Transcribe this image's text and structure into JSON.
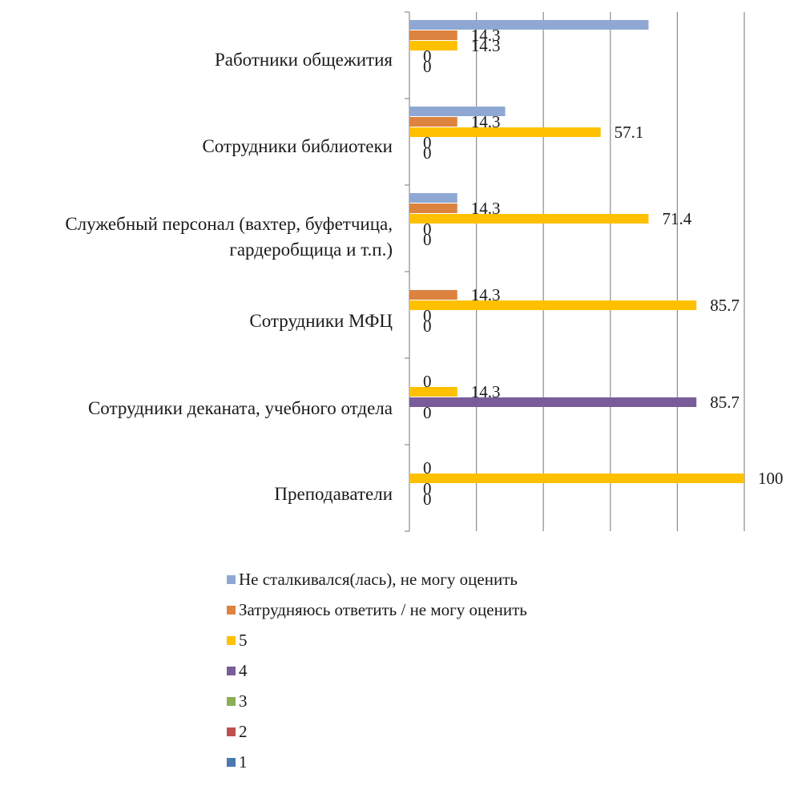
{
  "chart_data": {
    "type": "bar",
    "orientation": "horizontal",
    "categories": [
      "Работники общежития",
      "Сотрудники библиотеки",
      "Служебный персонал (вахтер, буфетчица, гардеробщица и т.п.)",
      "Сотрудники МФЦ",
      "Сотрудники деканата, учебного отдела",
      "Преподаватели"
    ],
    "series": [
      {
        "name": "Не сталкивался(лась), не могу оценить",
        "color": "#8FA8D3",
        "values": [
          71.4,
          28.6,
          14.3,
          null,
          null,
          null
        ]
      },
      {
        "name": "Затрудняюсь ответить / не могу оценить",
        "color": "#DD8340",
        "values": [
          14.3,
          14.3,
          14.3,
          14.3,
          null,
          null
        ]
      },
      {
        "name": "5",
        "color": "#FFC000",
        "values": [
          14.3,
          57.1,
          71.4,
          85.7,
          14.3,
          100
        ]
      },
      {
        "name": "4",
        "color": "#7A5C9A",
        "values": [
          0,
          0,
          0,
          0,
          85.7,
          0
        ]
      },
      {
        "name": "3",
        "color": "#8BAE55",
        "values": [
          0,
          0,
          0,
          0,
          0,
          0
        ]
      },
      {
        "name": "2",
        "color": "#C0504D",
        "values": [
          null,
          null,
          null,
          null,
          null,
          null
        ]
      },
      {
        "name": "1",
        "color": "#4A78B0",
        "values": [
          null,
          null,
          null,
          null,
          null,
          null
        ]
      }
    ],
    "data_labels": [
      {
        "category": 0,
        "series": 1,
        "text": "14.3"
      },
      {
        "category": 0,
        "series": 2,
        "text": "14.3"
      },
      {
        "category": 0,
        "series": 3,
        "text": "0"
      },
      {
        "category": 0,
        "series": 4,
        "text": "0"
      },
      {
        "category": 1,
        "series": 1,
        "text": "14.3"
      },
      {
        "category": 1,
        "series": 2,
        "text": "57.1"
      },
      {
        "category": 1,
        "series": 3,
        "text": "0"
      },
      {
        "category": 1,
        "series": 4,
        "text": "0"
      },
      {
        "category": 2,
        "series": 1,
        "text": "14.3"
      },
      {
        "category": 2,
        "series": 2,
        "text": "71.4"
      },
      {
        "category": 2,
        "series": 3,
        "text": "0"
      },
      {
        "category": 2,
        "series": 4,
        "text": "0"
      },
      {
        "category": 3,
        "series": 1,
        "text": "14.3"
      },
      {
        "category": 3,
        "series": 2,
        "text": "85.7"
      },
      {
        "category": 3,
        "series": 3,
        "text": "0"
      },
      {
        "category": 3,
        "series": 4,
        "text": "0"
      },
      {
        "category": 4,
        "series": 1,
        "text": "0"
      },
      {
        "category": 4,
        "series": 2,
        "text": "14.3"
      },
      {
        "category": 4,
        "series": 3,
        "text": "85.7"
      },
      {
        "category": 4,
        "series": 4,
        "text": "0"
      },
      {
        "category": 5,
        "series": 1,
        "text": "0"
      },
      {
        "category": 5,
        "series": 2,
        "text": "100"
      },
      {
        "category": 5,
        "series": 3,
        "text": "0"
      },
      {
        "category": 5,
        "series": 4,
        "text": "0"
      }
    ],
    "xlim": [
      0,
      100
    ],
    "x_gridlines": [
      0,
      20,
      40,
      60,
      80,
      100
    ],
    "grid": true,
    "legend_position": "bottom",
    "legend": [
      {
        "name": "Не сталкивался(лась), не могу оценить",
        "color": "#8FA8D3"
      },
      {
        "name": "Затрудняюсь ответить / не могу оценить",
        "color": "#DD8340"
      },
      {
        "name": "5",
        "color": "#FFC000"
      },
      {
        "name": "4",
        "color": "#7A5C9A"
      },
      {
        "name": "3",
        "color": "#8BAE55"
      },
      {
        "name": "2",
        "color": "#C0504D"
      },
      {
        "name": "1",
        "color": "#4A78B0"
      }
    ]
  }
}
